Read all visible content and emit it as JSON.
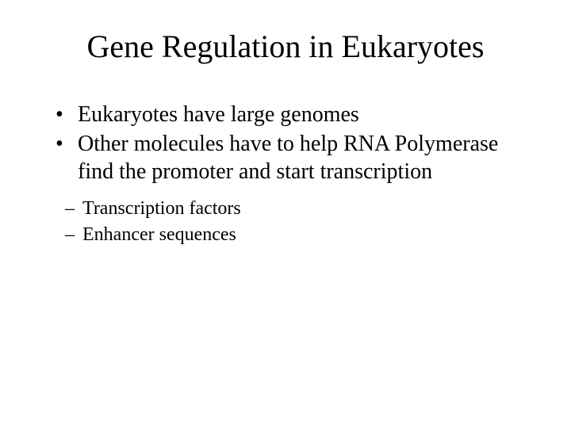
{
  "slide": {
    "title": "Gene Regulation in Eukaryotes",
    "bullets": [
      "Eukaryotes have large genomes",
      "Other molecules have to help RNA Polymerase find the promoter and start transcription"
    ],
    "sub_bullets": [
      "Transcription factors",
      "Enhancer sequences"
    ],
    "background_color": "#ffffff",
    "text_color": "#000000",
    "font_family": "Times New Roman",
    "title_fontsize": 40,
    "bullet_fontsize": 28,
    "sub_bullet_fontsize": 24
  }
}
